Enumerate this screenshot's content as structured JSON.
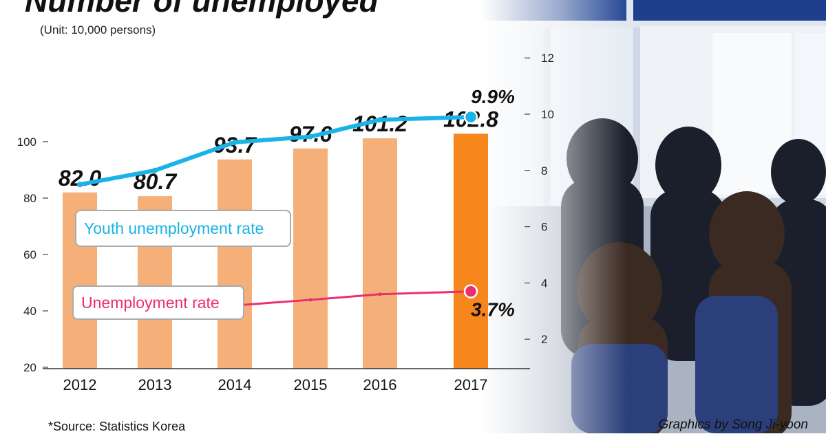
{
  "header": {
    "title": "Number of unemployed",
    "unit": "(Unit: 10,000 persons)"
  },
  "footer": {
    "source": "*Source: Statistics Korea",
    "credit": "Graphics by Song Ji-yoon"
  },
  "colors": {
    "bar": "#f5b07a",
    "bar_highlight": "#f7871c",
    "youth_line": "#19b3e6",
    "unemployment_line": "#ec2d6f",
    "axis_text": "#222222"
  },
  "chart_data": {
    "type": "bar",
    "categories": [
      "2012",
      "2013",
      "2014",
      "2015",
      "2016",
      "2017"
    ],
    "values": [
      82.0,
      80.7,
      93.7,
      97.6,
      101.2,
      102.8
    ],
    "value_labels": [
      "82.0",
      "80.7",
      "93.7",
      "97.6",
      "101.2",
      "102.8"
    ],
    "highlight_index": 5,
    "ylim": [
      0,
      105
    ],
    "yticks": [
      20,
      40,
      60,
      80,
      100
    ],
    "y2lim": [
      2,
      13
    ],
    "y2ticks": [
      2,
      4,
      6,
      8,
      10,
      12
    ],
    "series": [
      {
        "name": "Youth unemployment rate",
        "type": "line",
        "axis": "right",
        "values": [
          7.5,
          8.0,
          9.0,
          9.2,
          9.8,
          9.9
        ],
        "end_label": "9.9%"
      },
      {
        "name": "Unemployment rate",
        "type": "line",
        "axis": "right",
        "values": [
          3.2,
          2.8,
          3.2,
          3.4,
          3.6,
          3.7
        ],
        "end_label": "3.7%"
      }
    ]
  }
}
